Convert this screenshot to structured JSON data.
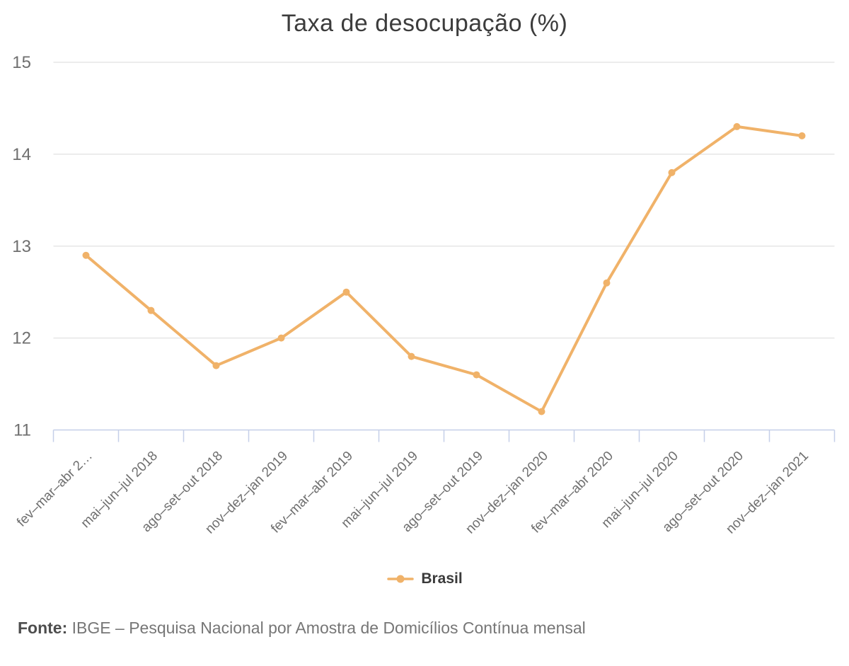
{
  "chart": {
    "title": "Taxa de desocupação (%)",
    "legend": {
      "items": [
        {
          "label": "Brasil"
        }
      ]
    },
    "source": {
      "label": "Fonte:",
      "text": "IBGE – Pesquisa Nacional por Amostra de Domicílios Contínua mensal"
    }
  },
  "chart_data": {
    "type": "line",
    "title": "Taxa de desocupação (%)",
    "categories": [
      "fev–mar–abr 2…",
      "mai–jun–jul 2018",
      "ago–set–out 2018",
      "nov–dez–jan 2019",
      "fev–mar–abr 2019",
      "mai–jun–jul 2019",
      "ago–set–out 2019",
      "nov–dez–jan 2020",
      "fev–mar–abr 2020",
      "mai–jun–jul 2020",
      "ago–set–out 2020",
      "nov–dez–jan 2021"
    ],
    "series": [
      {
        "name": "Brasil",
        "color": "#f0b269",
        "values": [
          12.9,
          12.3,
          11.7,
          12.0,
          12.5,
          11.8,
          11.6,
          11.2,
          12.6,
          13.8,
          14.3,
          14.2
        ]
      }
    ],
    "xlabel": "",
    "ylabel": "",
    "ylim": [
      11,
      15
    ],
    "yticks": [
      11,
      12,
      13,
      14,
      15
    ],
    "grid": true,
    "legend_position": "bottom",
    "colors": {
      "grid": "#e6e6e6",
      "axis": "#c5cfe8",
      "axis_text": "#6f6f6f",
      "title": "#3c3c3c",
      "legend_text": "#3a3a3a",
      "source_label": "#4d4d4d",
      "source_text": "#767676"
    }
  }
}
